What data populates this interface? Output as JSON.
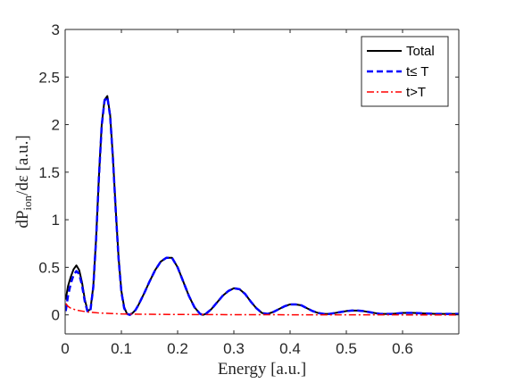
{
  "chart_data": {
    "type": "line",
    "title": "",
    "xlabel": "Energy [a.u.]",
    "ylabel": {
      "prefix": "dP",
      "subscript": "ion",
      "suffix": "/dε [a.u.]"
    },
    "xlim": [
      0,
      0.7
    ],
    "ylim": [
      -0.2,
      3
    ],
    "xticks": [
      "0",
      "0.1",
      "0.2",
      "0.3",
      "0.4",
      "0.5",
      "0.6"
    ],
    "xtick_values": [
      0,
      0.1,
      0.2,
      0.3,
      0.4,
      0.5,
      0.6
    ],
    "yticks": [
      "0",
      "0.5",
      "1",
      "1.5",
      "2",
      "2.5",
      "3"
    ],
    "ytick_values": [
      0,
      0.5,
      1,
      1.5,
      2,
      2.5,
      3
    ],
    "grid": false,
    "legend_position": "top-right",
    "series": [
      {
        "name": "Total",
        "color": "#000000",
        "style": "solid",
        "x": [
          0.001,
          0.005,
          0.01,
          0.015,
          0.02,
          0.025,
          0.03,
          0.035,
          0.04,
          0.045,
          0.05,
          0.055,
          0.06,
          0.065,
          0.07,
          0.075,
          0.08,
          0.085,
          0.09,
          0.095,
          0.1,
          0.105,
          0.11,
          0.115,
          0.12,
          0.125,
          0.13,
          0.14,
          0.15,
          0.16,
          0.17,
          0.18,
          0.19,
          0.2,
          0.21,
          0.22,
          0.23,
          0.24,
          0.245,
          0.25,
          0.26,
          0.27,
          0.28,
          0.29,
          0.3,
          0.31,
          0.32,
          0.33,
          0.34,
          0.35,
          0.36,
          0.37,
          0.38,
          0.39,
          0.4,
          0.41,
          0.42,
          0.43,
          0.44,
          0.45,
          0.46,
          0.47,
          0.48,
          0.49,
          0.5,
          0.51,
          0.52,
          0.53,
          0.54,
          0.55,
          0.56,
          0.57,
          0.58,
          0.59,
          0.6,
          0.62,
          0.64,
          0.66,
          0.68,
          0.7
        ],
        "y": [
          0.16,
          0.3,
          0.4,
          0.48,
          0.52,
          0.47,
          0.34,
          0.16,
          0.04,
          0.06,
          0.3,
          0.8,
          1.45,
          2.0,
          2.26,
          2.3,
          2.1,
          1.65,
          1.1,
          0.6,
          0.25,
          0.08,
          0.01,
          0.0,
          0.02,
          0.05,
          0.1,
          0.22,
          0.35,
          0.47,
          0.56,
          0.6,
          0.6,
          0.5,
          0.35,
          0.2,
          0.08,
          0.01,
          0.0,
          0.01,
          0.06,
          0.13,
          0.2,
          0.25,
          0.28,
          0.27,
          0.22,
          0.14,
          0.07,
          0.02,
          0.01,
          0.03,
          0.06,
          0.09,
          0.11,
          0.11,
          0.1,
          0.07,
          0.04,
          0.02,
          0.01,
          0.01,
          0.02,
          0.03,
          0.04,
          0.045,
          0.045,
          0.04,
          0.03,
          0.02,
          0.01,
          0.01,
          0.01,
          0.015,
          0.02,
          0.02,
          0.015,
          0.01,
          0.01,
          0.01
        ]
      },
      {
        "name": "t≤ T",
        "color": "#0000ff",
        "style": "dashed",
        "x": [
          0.001,
          0.005,
          0.01,
          0.015,
          0.02,
          0.025,
          0.03,
          0.035,
          0.04,
          0.045,
          0.05,
          0.055,
          0.06,
          0.065,
          0.07,
          0.075,
          0.08,
          0.085,
          0.09,
          0.095,
          0.1,
          0.105,
          0.11,
          0.115,
          0.12,
          0.125,
          0.13,
          0.14,
          0.15,
          0.16,
          0.17,
          0.18,
          0.19,
          0.2,
          0.21,
          0.22,
          0.23,
          0.24,
          0.245,
          0.25,
          0.26,
          0.27,
          0.28,
          0.29,
          0.3,
          0.31,
          0.32,
          0.33,
          0.34,
          0.35,
          0.36,
          0.37,
          0.38,
          0.39,
          0.4,
          0.41,
          0.42,
          0.43,
          0.44,
          0.45,
          0.46,
          0.47,
          0.48,
          0.49,
          0.5,
          0.51,
          0.52,
          0.53,
          0.54,
          0.55,
          0.56,
          0.57,
          0.58,
          0.59,
          0.6,
          0.62,
          0.64,
          0.66,
          0.68,
          0.7
        ],
        "y": [
          0.04,
          0.2,
          0.33,
          0.42,
          0.46,
          0.43,
          0.31,
          0.14,
          0.03,
          0.05,
          0.29,
          0.79,
          1.44,
          1.99,
          2.25,
          2.29,
          2.09,
          1.64,
          1.09,
          0.59,
          0.24,
          0.07,
          0.01,
          0.0,
          0.02,
          0.05,
          0.1,
          0.22,
          0.35,
          0.47,
          0.56,
          0.6,
          0.6,
          0.5,
          0.35,
          0.2,
          0.08,
          0.01,
          0.0,
          0.01,
          0.06,
          0.13,
          0.2,
          0.25,
          0.28,
          0.27,
          0.22,
          0.14,
          0.07,
          0.02,
          0.01,
          0.03,
          0.06,
          0.09,
          0.11,
          0.11,
          0.1,
          0.07,
          0.04,
          0.02,
          0.01,
          0.01,
          0.02,
          0.03,
          0.04,
          0.045,
          0.045,
          0.04,
          0.03,
          0.02,
          0.01,
          0.01,
          0.01,
          0.015,
          0.02,
          0.02,
          0.015,
          0.01,
          0.01,
          0.01
        ]
      },
      {
        "name": "t>T",
        "color": "#ff0000",
        "style": "dashdot",
        "x": [
          0.001,
          0.005,
          0.01,
          0.015,
          0.02,
          0.03,
          0.04,
          0.05,
          0.06,
          0.08,
          0.1,
          0.12,
          0.15,
          0.2,
          0.25,
          0.3,
          0.4,
          0.5,
          0.6,
          0.7
        ],
        "y": [
          0.12,
          0.09,
          0.07,
          0.06,
          0.05,
          0.04,
          0.03,
          0.025,
          0.02,
          0.015,
          0.01,
          0.008,
          0.006,
          0.004,
          0.003,
          0.002,
          0.001,
          0.001,
          0.0,
          0.0
        ]
      }
    ]
  }
}
